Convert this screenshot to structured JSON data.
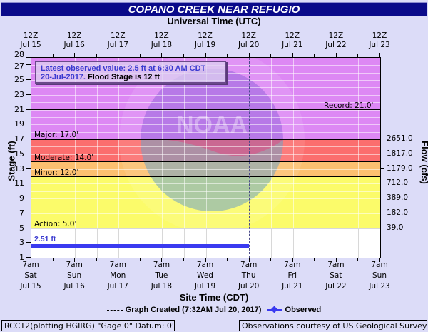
{
  "header": {
    "title": "COPANO CREEK NEAR REFUGIO",
    "top_axis_title": "Universal Time (UTC)"
  },
  "info_box": {
    "line1": "Latest observed value: 2.5 ft at 6:30 AM CDT",
    "line2_date": "20-Jul-2017.",
    "line2_flood": "Flood Stage is 12 ft"
  },
  "footer": {
    "site_time_title": "Site Time (CDT)",
    "legend_created": "Graph Created (7:32AM Jul 20, 2017)",
    "legend_observed": "Observed",
    "left_note": "RCCT2(plotting HGIRG) \"Gage 0\" Datum: 0'",
    "right_note": "Observations courtesy of US Geological Survey"
  },
  "colors": {
    "title_bg": "#0a0a8a",
    "background": "#dcdcf8",
    "record_band": "#dd88f4",
    "major_band": "#fb6e6e",
    "moderate_band": "#fcc070",
    "minor_band": "#fbfb6a",
    "action_band": "#ffffff",
    "observed": "#3a3af0"
  },
  "chart_data": {
    "type": "line",
    "title": "COPANO CREEK NEAR REFUGIO",
    "xlabel": "Site Time (CDT)",
    "x2label": "Universal Time (UTC)",
    "ylabel": "Stage (ft)",
    "y2label": "Flow (cfs)",
    "ylim": [
      1,
      28
    ],
    "y_ticks": [
      1,
      3,
      5,
      7,
      9,
      11,
      13,
      15,
      17,
      19,
      21,
      23,
      25,
      27,
      28
    ],
    "x_ticks_bottom": [
      {
        "time": "7am",
        "day": "Sat",
        "date": "Jul 15"
      },
      {
        "time": "7am",
        "day": "Sun",
        "date": "Jul 16"
      },
      {
        "time": "7am",
        "day": "Mon",
        "date": "Jul 17"
      },
      {
        "time": "7am",
        "day": "Tue",
        "date": "Jul 18"
      },
      {
        "time": "7am",
        "day": "Wed",
        "date": "Jul 19"
      },
      {
        "time": "7am",
        "day": "Thu",
        "date": "Jul 20"
      },
      {
        "time": "7am",
        "day": "Fri",
        "date": "Jul 21"
      },
      {
        "time": "7am",
        "day": "Sat",
        "date": "Jul 22"
      },
      {
        "time": "7am",
        "day": "Sun",
        "date": "Jul 23"
      }
    ],
    "x_ticks_top": [
      {
        "time": "12Z",
        "date": "Jul 15"
      },
      {
        "time": "12Z",
        "date": "Jul 16"
      },
      {
        "time": "12Z",
        "date": "Jul 17"
      },
      {
        "time": "12Z",
        "date": "Jul 18"
      },
      {
        "time": "12Z",
        "date": "Jul 19"
      },
      {
        "time": "12Z",
        "date": "Jul 20"
      },
      {
        "time": "12Z",
        "date": "Jul 21"
      },
      {
        "time": "12Z",
        "date": "Jul 22"
      },
      {
        "time": "12Z",
        "date": "Jul 23"
      }
    ],
    "flow_ticks": [
      {
        "stage": 17,
        "flow": "2651.0"
      },
      {
        "stage": 15,
        "flow": "1817.0"
      },
      {
        "stage": 13,
        "flow": "1179.0"
      },
      {
        "stage": 11,
        "flow": "712.0"
      },
      {
        "stage": 9,
        "flow": "389.0"
      },
      {
        "stage": 7,
        "flow": "182.0"
      },
      {
        "stage": 5,
        "flow": "39.0"
      }
    ],
    "thresholds": [
      {
        "name": "Record",
        "label": "Record:  21.0'",
        "stage": 21.0
      },
      {
        "name": "Major",
        "label": "Major: 17.0'",
        "stage": 17.0
      },
      {
        "name": "Moderate",
        "label": "Moderate: 14.0'",
        "stage": 14.0
      },
      {
        "name": "Minor",
        "label": "Minor: 12.0'",
        "stage": 12.0
      },
      {
        "name": "Action",
        "label": "Action:  5.0'",
        "stage": 5.0
      }
    ],
    "series": [
      {
        "name": "Observed",
        "label": "2.51 ft",
        "x": [
          "Jul 15 7am",
          "Jul 16 7am",
          "Jul 17 7am",
          "Jul 18 7am",
          "Jul 19 7am",
          "Jul 20 6:30am"
        ],
        "values": [
          2.51,
          2.51,
          2.51,
          2.51,
          2.51,
          2.5
        ]
      }
    ],
    "graph_created": "7:32AM Jul 20, 2017",
    "legend_position": "bottom"
  }
}
